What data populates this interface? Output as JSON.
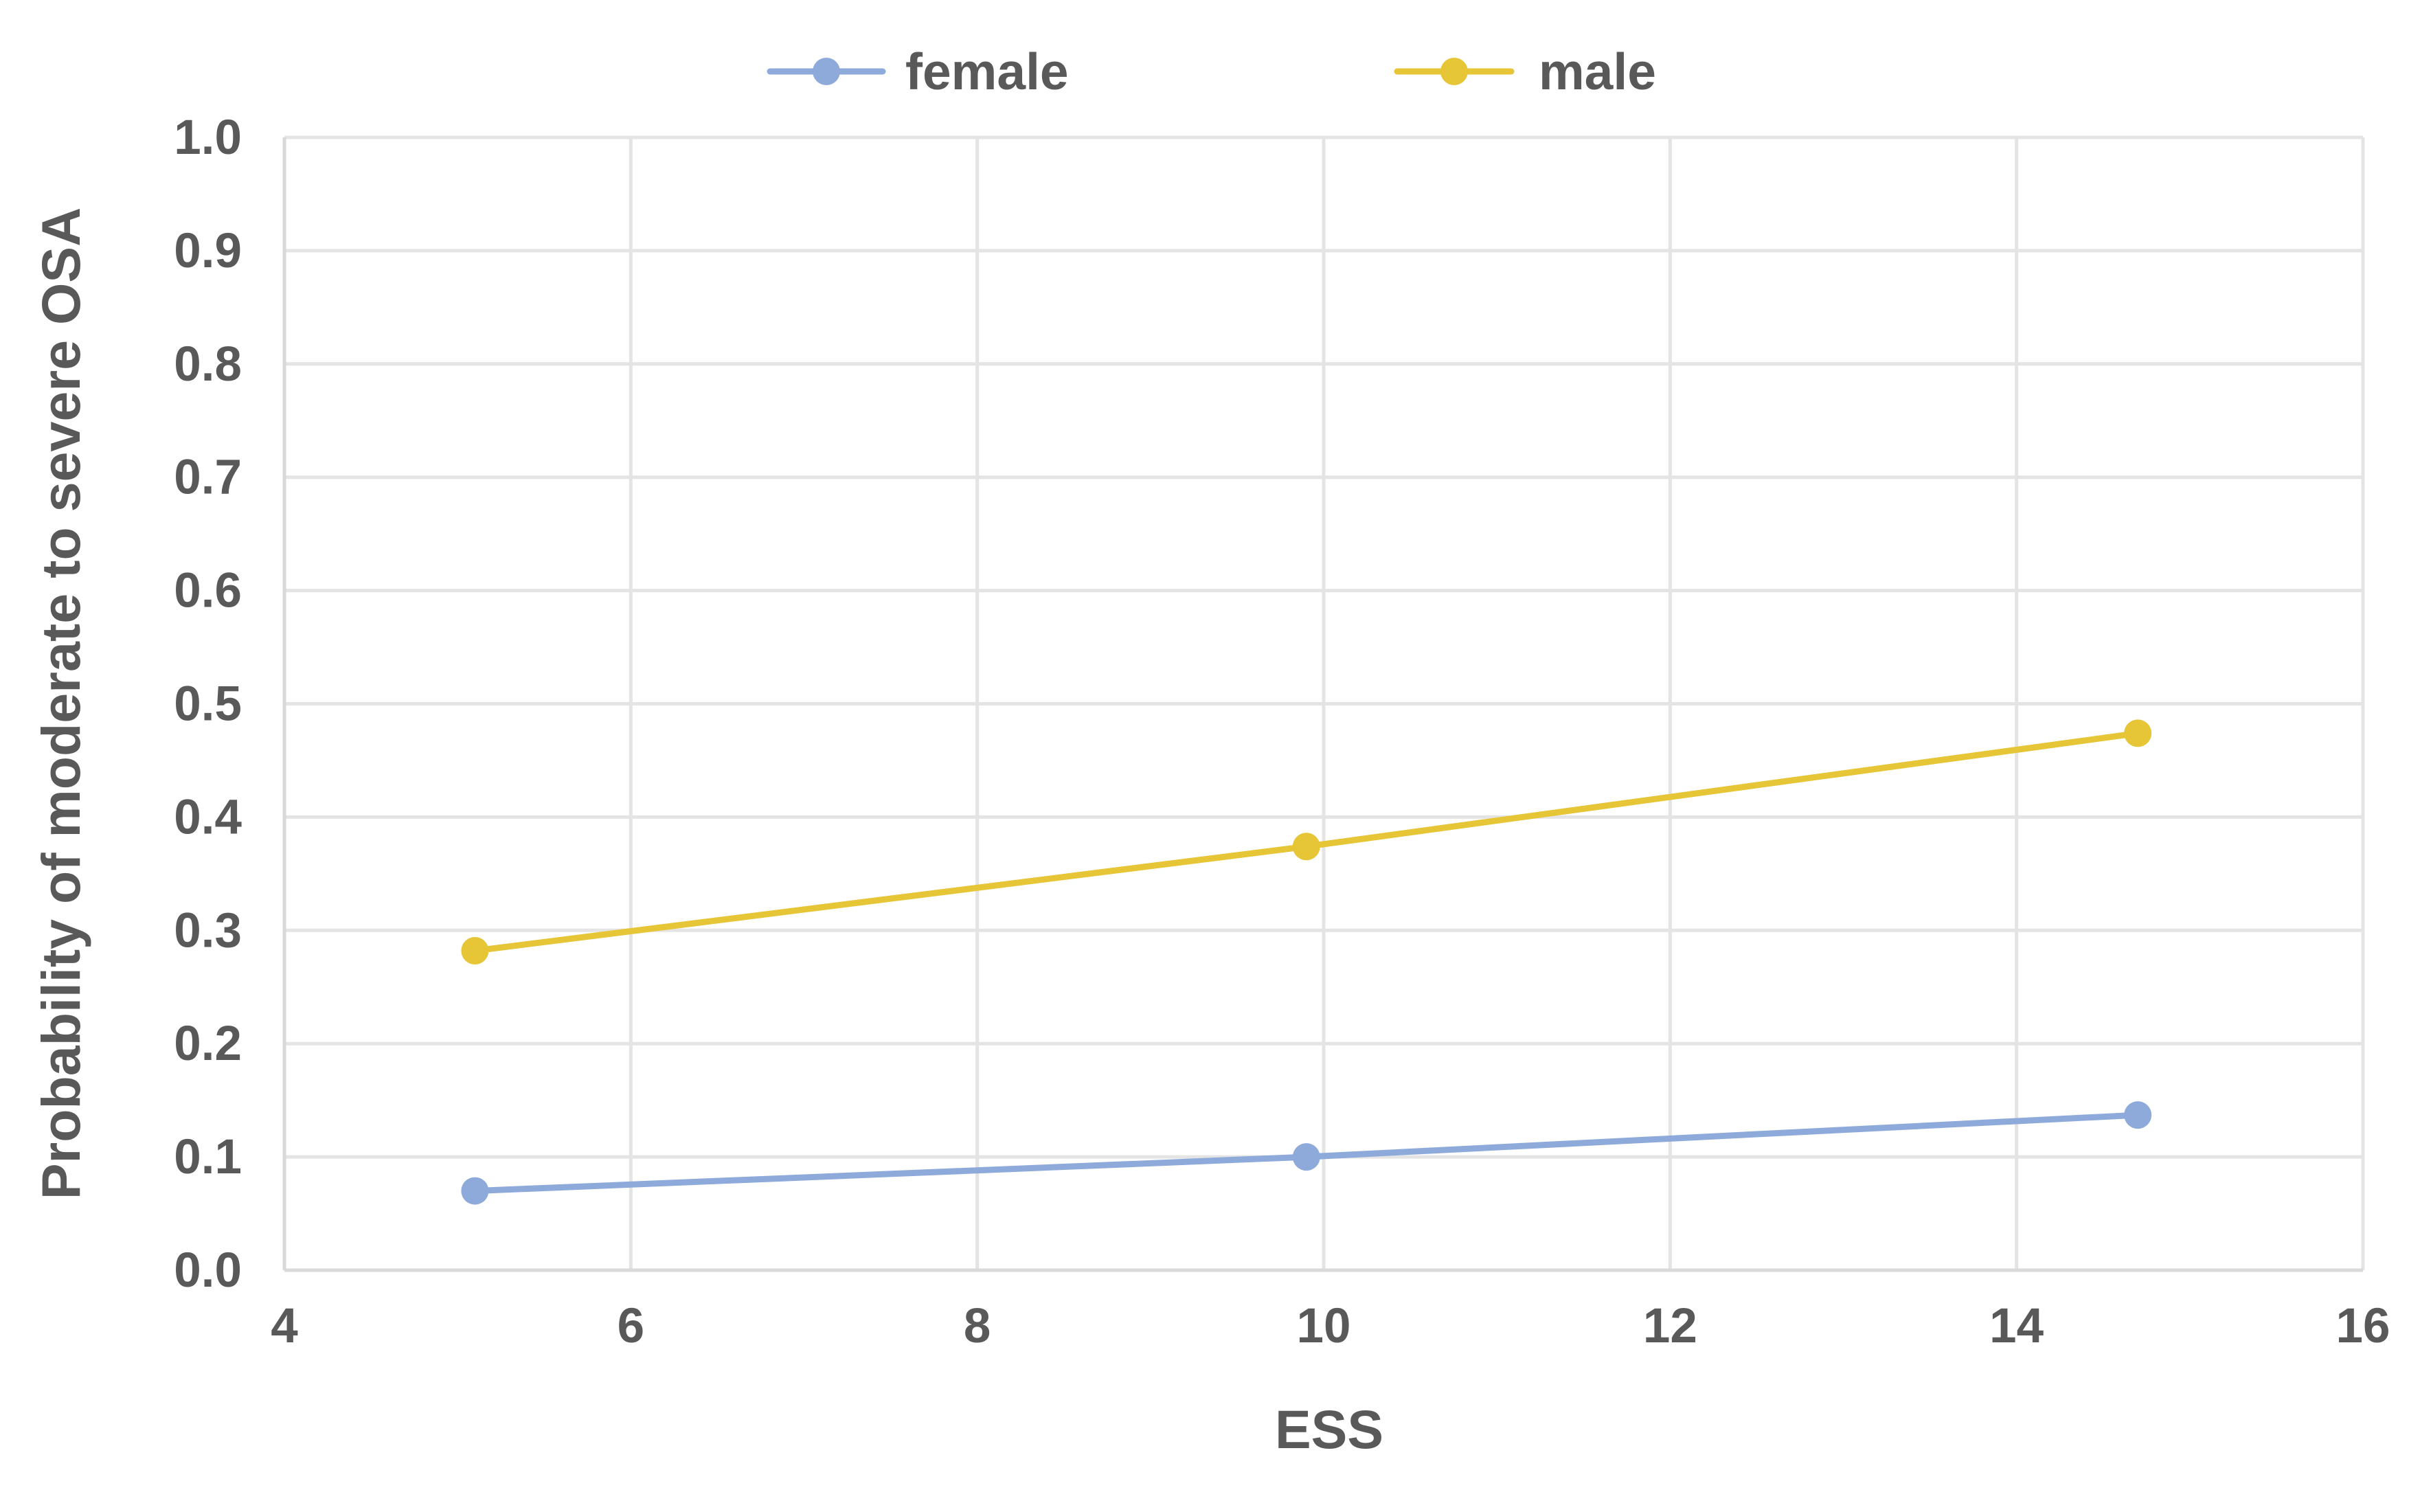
{
  "chart_data": {
    "type": "line",
    "title": "",
    "xlabel": "ESS",
    "ylabel": "Probability of moderate to severe OSA",
    "xlim": [
      4,
      16
    ],
    "ylim": [
      0,
      1.0
    ],
    "x_ticks": [
      "4",
      "6",
      "8",
      "10",
      "12",
      "14",
      "16"
    ],
    "y_ticks": [
      "0.0",
      "0.1",
      "0.2",
      "0.3",
      "0.4",
      "0.5",
      "0.6",
      "0.7",
      "0.8",
      "0.9",
      "1.0"
    ],
    "grid": true,
    "legend_position": "top",
    "series": [
      {
        "name": "female",
        "color": "#8eaadb",
        "x": [
          5.1,
          9.9,
          14.7
        ],
        "y": [
          0.07,
          0.1,
          0.137
        ]
      },
      {
        "name": "male",
        "color": "#e6c536",
        "x": [
          5.1,
          9.9,
          14.7
        ],
        "y": [
          0.282,
          0.374,
          0.474
        ]
      }
    ]
  }
}
